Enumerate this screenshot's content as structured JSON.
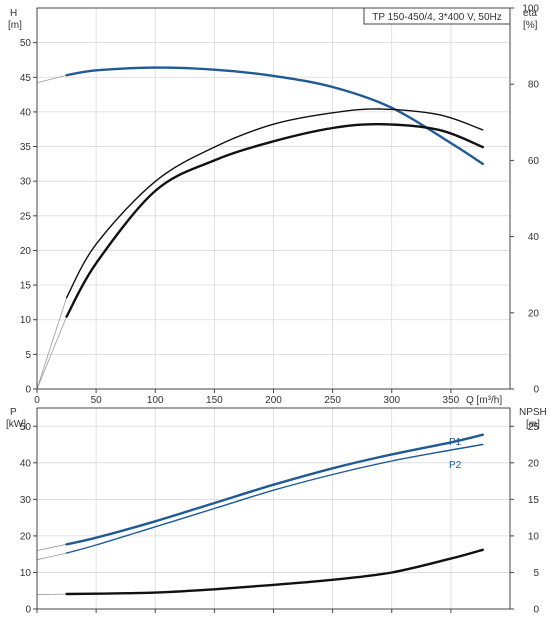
{
  "chart_data": [
    {
      "type": "line",
      "title": "TP 150-450/4, 3*400 V, 50Hz",
      "xlabel": "Q [m³/h]",
      "x_ticks": [
        0,
        50,
        100,
        150,
        200,
        250,
        300,
        350
      ],
      "xlim": [
        0,
        400
      ],
      "left_axis": {
        "label_line1": "H",
        "label_line2": "[m]",
        "ylim": [
          0,
          55
        ],
        "ticks": [
          0,
          5,
          10,
          15,
          20,
          25,
          30,
          35,
          40,
          45,
          50
        ]
      },
      "right_axis": {
        "label_line1": "eta",
        "label_line2": "[%]",
        "ylim": [
          0,
          100
        ],
        "ticks": [
          0,
          20,
          40,
          60,
          80,
          100
        ]
      },
      "series": [
        {
          "key": "H",
          "axis": "left",
          "color": "#1f5a96",
          "width": 2.4,
          "x": [
            25,
            50,
            100,
            150,
            200,
            250,
            300,
            350,
            377
          ],
          "y": [
            45.3,
            46.0,
            46.4,
            46.1,
            45.2,
            43.6,
            40.6,
            35.5,
            32.5
          ],
          "ext_x": [
            0,
            25
          ],
          "ext_y": [
            44.2,
            45.3
          ]
        },
        {
          "key": "eta1",
          "axis": "right",
          "color": "#111111",
          "width": 1.4,
          "x": [
            25,
            50,
            100,
            150,
            200,
            250,
            290,
            340,
            377
          ],
          "y": [
            24,
            38,
            54.5,
            63.5,
            69.5,
            72.5,
            73.5,
            72,
            68
          ],
          "ext_x": [
            0,
            25
          ],
          "ext_y": [
            0,
            24
          ]
        },
        {
          "key": "eta2",
          "axis": "right",
          "color": "#111111",
          "width": 2.4,
          "x": [
            25,
            50,
            100,
            150,
            200,
            250,
            290,
            340,
            377
          ],
          "y": [
            19,
            33,
            52,
            60,
            65,
            68.5,
            69.5,
            68,
            63.5
          ],
          "ext_x": [
            0,
            25
          ],
          "ext_y": [
            0,
            19
          ]
        }
      ]
    },
    {
      "type": "line",
      "xlim": [
        0,
        400
      ],
      "x_ticks": [
        0,
        50,
        100,
        150,
        200,
        250,
        300,
        350
      ],
      "left_axis": {
        "label_line1": "P",
        "label_line2": "[kW]",
        "ylim": [
          0,
          55
        ],
        "ticks": [
          0,
          10,
          20,
          30,
          40,
          50
        ]
      },
      "right_axis": {
        "label_line1": "NPSH",
        "label_line2": "[m]",
        "ylim": [
          0,
          27.5
        ],
        "ticks": [
          0,
          5,
          10,
          15,
          20,
          25
        ]
      },
      "series": [
        {
          "key": "P1",
          "name": "P1",
          "axis": "left",
          "color": "#1f5a96",
          "width": 2.4,
          "x": [
            25,
            50,
            100,
            150,
            200,
            250,
            300,
            350,
            377
          ],
          "y": [
            17.7,
            19.5,
            24,
            29,
            34,
            38.5,
            42.3,
            45.6,
            47.7
          ],
          "ext_x": [
            0,
            25
          ],
          "ext_y": [
            16,
            17.7
          ]
        },
        {
          "key": "P2",
          "name": "P2",
          "axis": "left",
          "color": "#1f5a96",
          "width": 1.4,
          "x": [
            25,
            50,
            100,
            150,
            200,
            250,
            300,
            350,
            377
          ],
          "y": [
            15.3,
            17.5,
            22.5,
            27.5,
            32.5,
            36.8,
            40.5,
            43.5,
            45
          ],
          "ext_x": [
            0,
            25
          ],
          "ext_y": [
            13.5,
            15.3
          ]
        },
        {
          "key": "NPSH",
          "axis": "right",
          "color": "#111111",
          "width": 2.4,
          "x": [
            25,
            50,
            100,
            150,
            200,
            250,
            300,
            350,
            377
          ],
          "y": [
            2.05,
            2.1,
            2.25,
            2.7,
            3.3,
            4,
            5,
            6.9,
            8.1
          ],
          "ext_x": [
            0,
            25
          ],
          "ext_y": [
            1.95,
            2.05
          ]
        }
      ]
    }
  ]
}
